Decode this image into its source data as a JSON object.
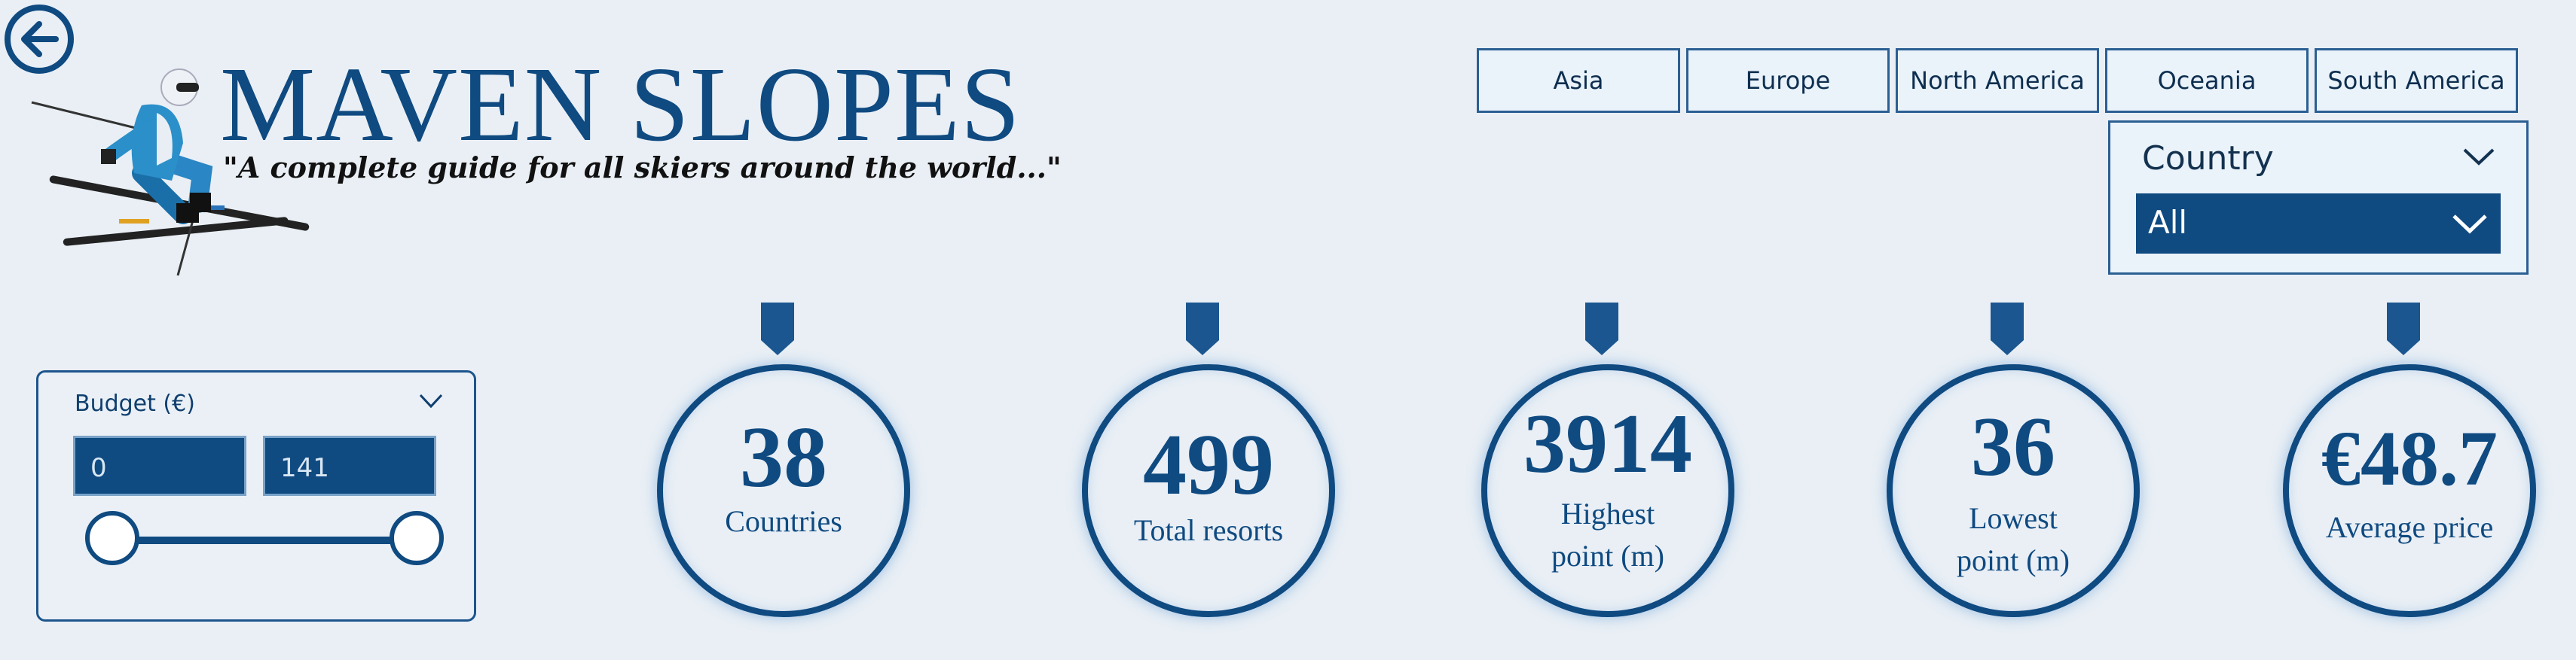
{
  "header": {
    "title": "MAVEN SLOPES",
    "tagline": "\"A complete guide for all skiers around the world...\""
  },
  "icons": {
    "back": "back-arrow-icon",
    "logo": "skier-icon",
    "dropdown": "chevron-down-icon"
  },
  "regions": [
    "Asia",
    "Europe",
    "North America",
    "Oceania",
    "South America"
  ],
  "country_filter": {
    "label": "Country",
    "selected": "All"
  },
  "budget": {
    "label": "Budget (€)",
    "min_value": "0",
    "max_value": "141"
  },
  "kpis": [
    {
      "value": "38",
      "caption_lines": [
        "Countries"
      ]
    },
    {
      "value": "499",
      "caption_lines": [
        "Total resorts"
      ]
    },
    {
      "value": "3914",
      "caption_lines": [
        "Highest",
        "point (m)"
      ]
    },
    {
      "value": "36",
      "caption_lines": [
        "Lowest",
        "point (m)"
      ]
    },
    {
      "value": "€48.7",
      "caption_lines": [
        "Average price"
      ]
    }
  ],
  "colors": {
    "primary": "#0f4a81",
    "background": "#e9eff5",
    "tab_background": "#eaf2fa"
  }
}
